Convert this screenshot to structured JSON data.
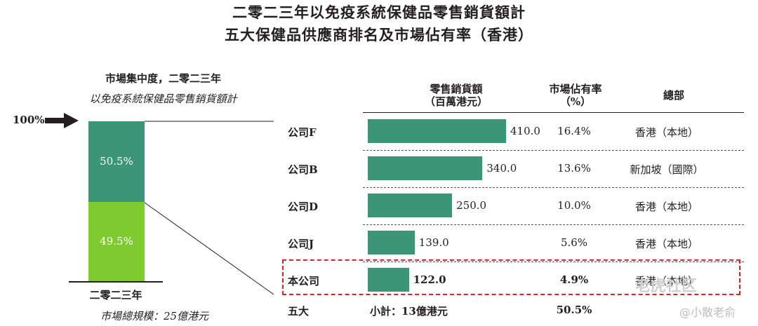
{
  "chart_data": [
    {
      "type": "bar",
      "subtype": "stacked-100",
      "heading": "市場集中度，二零二三年",
      "subheading": "以免疫系統保健品零售銷貨額計",
      "scale_label": "100%",
      "categories": [
        "二零二三年"
      ],
      "series": [
        {
          "name": "",
          "values": [
            50.5
          ],
          "label": "50.5%",
          "color": "#3a9676"
        },
        {
          "name": "",
          "values": [
            49.5
          ],
          "label": "49.5%",
          "color": "#7ecb2f"
        }
      ],
      "footnote": "市場總規模：25億港元",
      "ylim": [
        0,
        100
      ]
    },
    {
      "type": "table",
      "columns": [
        "",
        "零售銷貨額\n（百萬港元）",
        "市場佔有率\n（%）",
        "總部"
      ],
      "column_lines": {
        "sales": [
          "零售銷貨額",
          "（百萬港元）"
        ],
        "share": [
          "市場佔有率",
          "（%）"
        ],
        "hq": [
          "總部"
        ]
      },
      "bar_color": "#3a9676",
      "xlim": [
        0,
        410
      ],
      "rows": [
        {
          "company": "公司F",
          "sales": 410.0,
          "sales_label": "410.0",
          "share": "16.4%",
          "hq": "香港（本地）"
        },
        {
          "company": "公司B",
          "sales": 340.0,
          "sales_label": "340.0",
          "share": "13.6%",
          "hq": "新加坡（國際）"
        },
        {
          "company": "公司D",
          "sales": 250.0,
          "sales_label": "250.0",
          "share": "10.0%",
          "hq": "香港（本地）"
        },
        {
          "company": "公司J",
          "sales": 139.0,
          "sales_label": "139.0",
          "share": "5.6%",
          "hq": "香港（本地）"
        },
        {
          "company": "本公司",
          "sales": 122.0,
          "sales_label": "122.0",
          "share": "4.9%",
          "hq": "香港（本地）",
          "highlight": true
        }
      ],
      "total": {
        "company": "五大",
        "sales_label": "小計：13億港元",
        "share": "50.5%"
      }
    }
  ],
  "page": {
    "title_line1": "二零二三年以免疫系統保健品零售銷貨額計",
    "title_line2": "五大保健品供應商排名及市場佔有率（香港）"
  },
  "watermark": {
    "text1": "老虎社区",
    "text2": "@小散老俞"
  }
}
